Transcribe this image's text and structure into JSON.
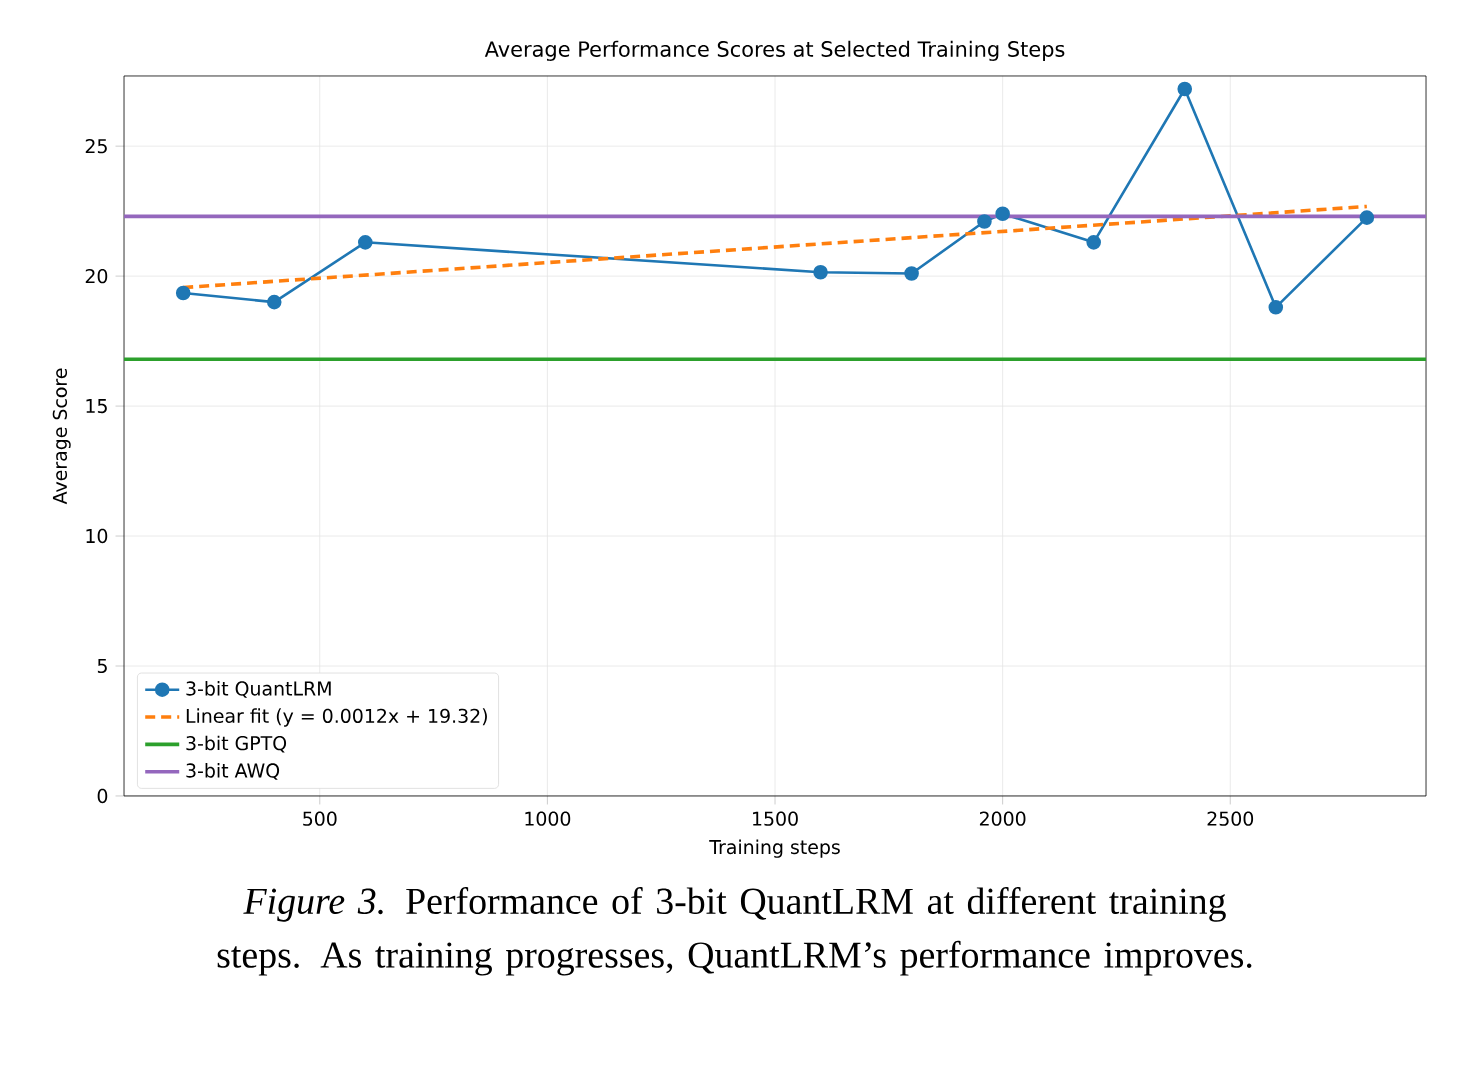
{
  "chart_data": {
    "type": "line",
    "title": "Average Performance Scores at Selected Training Steps",
    "xlabel": "Training steps",
    "ylabel": "Average Score",
    "series": [
      {
        "name": "3-bit QuantLRM",
        "color": "#1f77b4",
        "marker": "circle",
        "line_style": "solid",
        "x": [
          200,
          400,
          600,
          1600,
          1800,
          1960,
          2000,
          2200,
          2400,
          2600,
          2800
        ],
        "values": [
          19.35,
          19.0,
          21.3,
          20.15,
          20.1,
          22.1,
          22.4,
          21.3,
          27.2,
          18.8,
          22.25
        ]
      },
      {
        "name": "Linear fit (y = 0.0012x + 19.32)",
        "color": "#ff7f0e",
        "marker": "none",
        "line_style": "dashed",
        "x": [
          200,
          2800
        ],
        "values": [
          19.56,
          22.68
        ]
      }
    ],
    "ref_lines": [
      {
        "axis": "y",
        "value": 16.8,
        "label": "3-bit GPTQ",
        "color": "#2ca02c"
      },
      {
        "axis": "y",
        "value": 22.3,
        "label": "3-bit AWQ",
        "color": "#9467bd"
      }
    ],
    "xlim": [
      70,
      2930
    ],
    "ylim": [
      0,
      27.7
    ],
    "xticks": [
      500,
      1000,
      1500,
      2000,
      2500
    ],
    "yticks": [
      0,
      5,
      10,
      15,
      20,
      25
    ],
    "grid": true,
    "legend": "bottom left",
    "annotations": [
      "*Figure 3.* Performance of 3-bit QuantLRM at different training steps. As training progresses, QuantLRM’s performance improves."
    ]
  }
}
